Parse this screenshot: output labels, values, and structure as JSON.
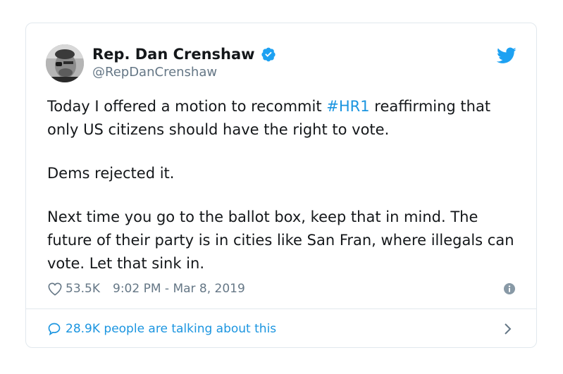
{
  "author": {
    "display_name": "Rep. Dan Crenshaw",
    "handle": "@RepDanCrenshaw"
  },
  "tweet": {
    "line1_before": "Today I offered a motion to recommit ",
    "hashtag": "#HR1",
    "line1_after": " reaffirming that only US citizens should have the right to vote.",
    "paragraph2": "Dems rejected it.",
    "paragraph3": "Next time you go to the ballot box, keep that in mind. The future of their party is in cities like San Fran, where illegals can vote. Let that sink in."
  },
  "meta": {
    "likes": "53.5K",
    "timestamp": "9:02 PM - Mar 8, 2019"
  },
  "footer": {
    "conversation_text": "28.9K people are talking about this"
  },
  "colors": {
    "accent": "#1b95e0",
    "twitter_blue": "#1da1f2",
    "text_primary": "#14171a",
    "text_secondary": "#657786",
    "border": "#e1e8ed"
  },
  "icons": {
    "verified": "verified-badge-icon",
    "brand": "twitter-bird-icon",
    "like": "heart-outline-icon",
    "info": "info-icon",
    "reply": "speech-bubble-icon",
    "more": "chevron-right-icon"
  }
}
